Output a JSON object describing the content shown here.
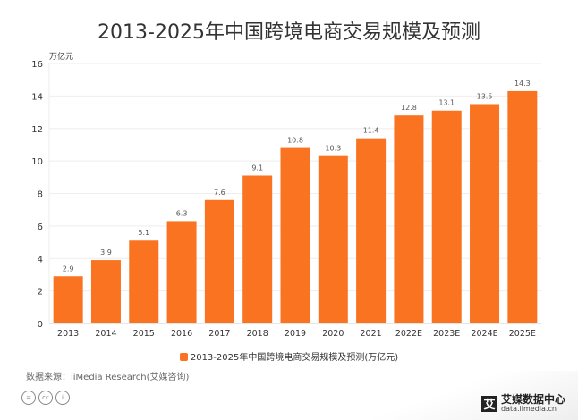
{
  "chart_data": {
    "type": "bar",
    "title": "2013-2025年中国跨境电商交易规模及预测",
    "unit_label": "万亿元",
    "categories": [
      "2013",
      "2014",
      "2015",
      "2016",
      "2017",
      "2018",
      "2019",
      "2020",
      "2021",
      "2022E",
      "2023E",
      "2024E",
      "2025E"
    ],
    "series": [
      {
        "name": "2013-2025年中国跨境电商交易规模及预测(万亿元)",
        "values": [
          2.9,
          3.9,
          5.1,
          6.3,
          7.6,
          9.1,
          10.8,
          10.3,
          11.4,
          12.8,
          13.1,
          13.5,
          14.3
        ],
        "color": "#fa7320"
      }
    ],
    "data_labels": [
      "2.9",
      "3.9",
      "5.1",
      "6.3",
      "7.6",
      "9.1",
      "10.8",
      "10.3",
      "11.4",
      "12.8",
      "13.1",
      "13.5",
      "14.3"
    ],
    "ylim": [
      0,
      16
    ],
    "yticks": [
      "0",
      "2",
      "4",
      "6",
      "8",
      "10",
      "12",
      "14",
      "16"
    ],
    "grid": true,
    "legend": "bottom"
  },
  "source": "数据来源：iiMedia Research(艾媒咨询)",
  "logo": {
    "name": "艾媒数据中心",
    "url_text": "data.iimedia.cn",
    "mark": "艾"
  },
  "license_icons": [
    "=",
    "cc",
    "i"
  ]
}
